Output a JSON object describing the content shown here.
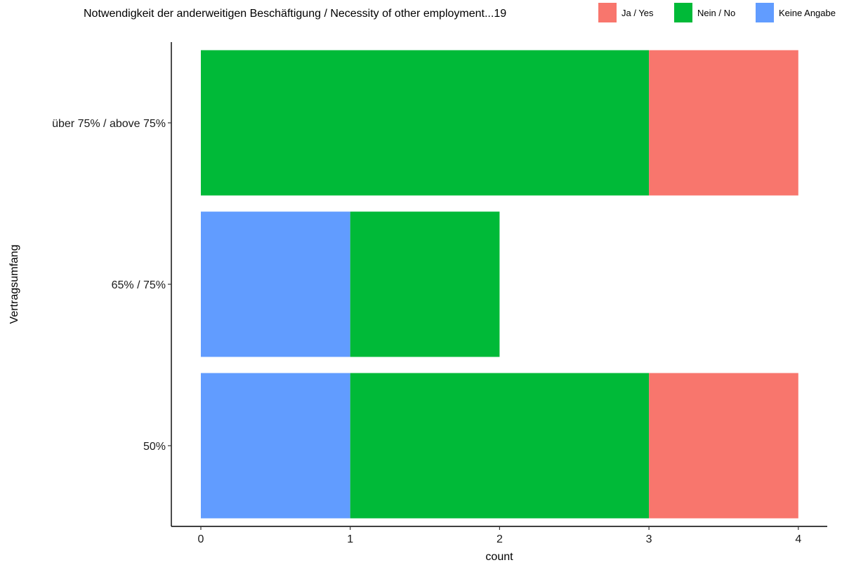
{
  "chart_data": {
    "type": "bar",
    "orientation": "horizontal",
    "stacked": true,
    "xlabel": "count",
    "ylabel": "Vertragsumfang",
    "xlim": [
      0,
      4
    ],
    "x_ticks": [
      "0",
      "1",
      "2",
      "3",
      "4"
    ],
    "categories": [
      "50%",
      "65% / 75%",
      "über 75% / above 75%"
    ],
    "legend": {
      "title": "Notwendigkeit der anderweitigen Beschäftigung / Necessity of other employment...19",
      "placement": "top",
      "entries": [
        "Ja / Yes",
        "Nein / No",
        "Keine Angabe"
      ]
    },
    "stack_order": [
      "Keine Angabe",
      "Nein / No",
      "Ja / Yes"
    ],
    "series": [
      {
        "name": "Ja / Yes",
        "color": "#F8766D",
        "values": [
          1,
          0,
          1
        ]
      },
      {
        "name": "Nein / No",
        "color": "#00BA38",
        "values": [
          2,
          1,
          3
        ]
      },
      {
        "name": "Keine Angabe",
        "color": "#619CFF",
        "values": [
          1,
          1,
          0
        ]
      }
    ],
    "grid": false
  }
}
